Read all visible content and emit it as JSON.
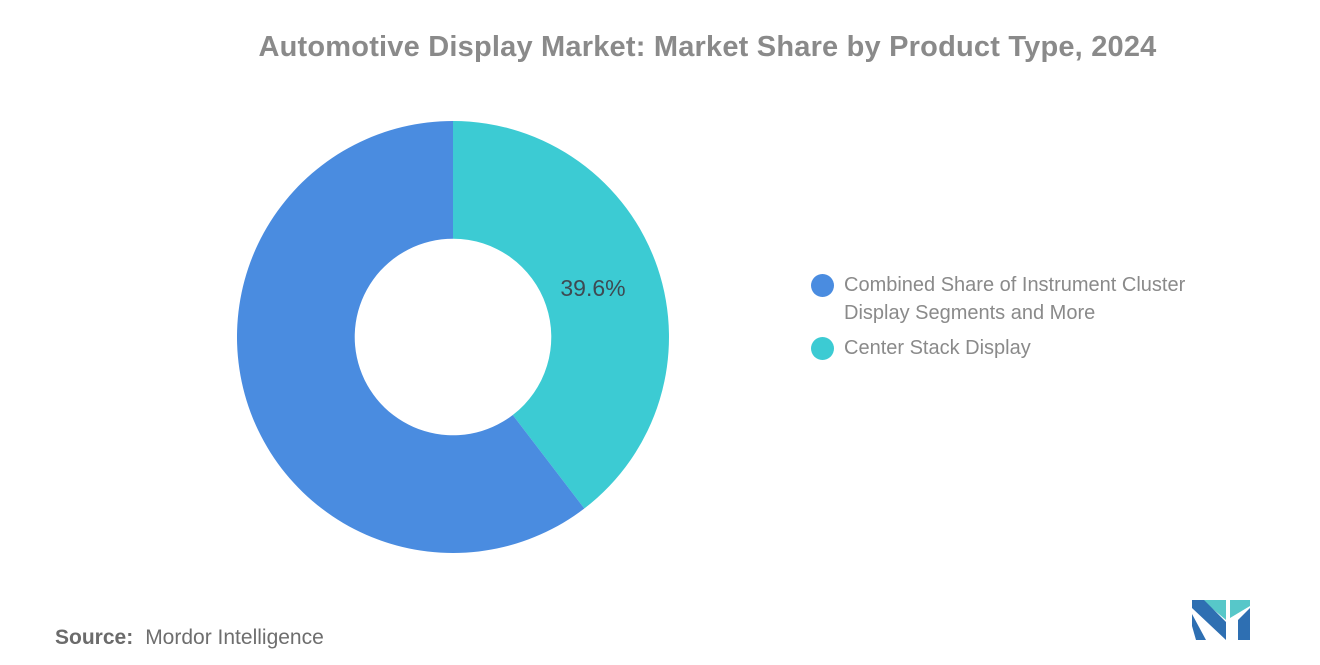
{
  "title": {
    "text": "Automotive Display Market: Market Share by Product Type, 2024",
    "color": "#8A8A8A"
  },
  "chart_data": {
    "type": "pie",
    "subtype": "donut",
    "title": "Automotive Display Market: Market Share by Product Type, 2024",
    "start_angle_deg": 0,
    "direction": "clockwise",
    "inner_radius_ratio": 0.455,
    "legend_position": "right",
    "grid": "off",
    "slices": [
      {
        "name": "Center Stack Display",
        "value": 39.6,
        "color": "#3CCBD3",
        "label": "39.6%"
      },
      {
        "name": "Combined Share of Instrument Cluster Display Segments and More",
        "value": 60.4,
        "color": "#4A8CE0",
        "label": ""
      }
    ]
  },
  "legend": {
    "items": [
      {
        "label": "Combined Share of Instrument Cluster Display Segments and More",
        "color": "#4A8CE0"
      },
      {
        "label": "Center Stack Display",
        "color": "#3CCBD3"
      }
    ]
  },
  "source": {
    "prefix": "Source:",
    "text": "Mordor Intelligence"
  },
  "logo": {
    "name": "mordor-intelligence-logo",
    "colors": {
      "blue": "#2E6FB2",
      "teal": "#57C7C9"
    }
  }
}
